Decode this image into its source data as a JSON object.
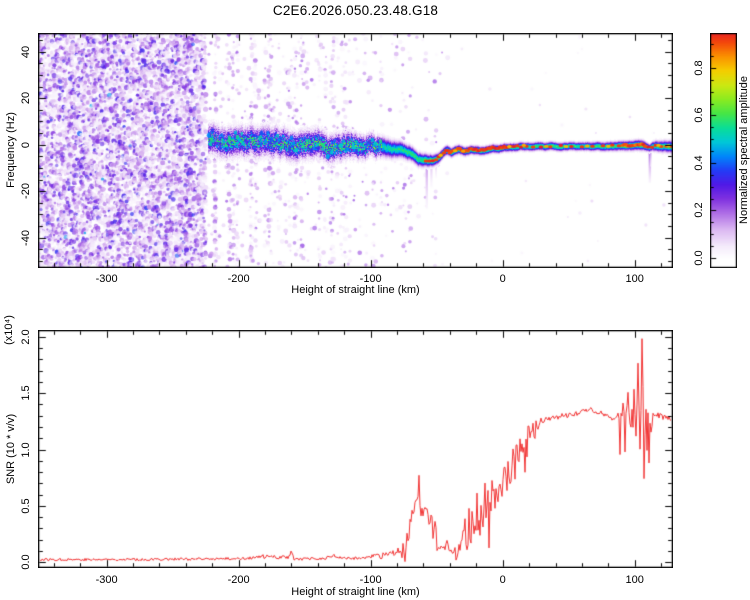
{
  "title": "C2E6.2026.050.23.48.G18",
  "colors": {
    "background": "#ffffff",
    "axis": "#000000",
    "snr_line": "#f23535",
    "colormap_stops": [
      [
        0.0,
        255,
        255,
        255
      ],
      [
        0.05,
        245,
        236,
        251
      ],
      [
        0.12,
        220,
        185,
        242
      ],
      [
        0.19,
        175,
        110,
        230
      ],
      [
        0.25,
        128,
        50,
        224
      ],
      [
        0.31,
        80,
        25,
        230
      ],
      [
        0.37,
        35,
        60,
        246
      ],
      [
        0.43,
        0,
        135,
        250
      ],
      [
        0.49,
        0,
        200,
        215
      ],
      [
        0.55,
        10,
        222,
        150
      ],
      [
        0.61,
        70,
        230,
        70
      ],
      [
        0.67,
        140,
        235,
        32
      ],
      [
        0.73,
        205,
        232,
        18
      ],
      [
        0.79,
        245,
        205,
        0
      ],
      [
        0.85,
        250,
        145,
        0
      ],
      [
        0.91,
        243,
        70,
        12
      ],
      [
        0.96,
        232,
        25,
        40
      ],
      [
        1.0,
        214,
        12,
        86
      ]
    ]
  },
  "chart_data": [
    {
      "type": "heatmap",
      "name": "spectrogram",
      "xlabel": "Height of straight line (km)",
      "ylabel": "Frequency (Hz)",
      "xlim": [
        -352,
        129
      ],
      "ylim": [
        -53,
        48
      ],
      "xticks": [
        [
          -300,
          "-300"
        ],
        [
          -200,
          "-200"
        ],
        [
          -100,
          "-100"
        ],
        [
          0,
          "0"
        ],
        [
          100,
          "100"
        ]
      ],
      "xminor_step": 20,
      "yticks": [
        [
          -40,
          "-40"
        ],
        [
          -20,
          "-20"
        ],
        [
          0,
          "0"
        ],
        [
          20,
          "20"
        ],
        [
          40,
          "40"
        ]
      ],
      "yminor_step": 5,
      "colorbar": {
        "label": "Normalized spectral amplitude",
        "ticks": [
          [
            0.0,
            "0.0"
          ],
          [
            0.2,
            "0.2"
          ],
          [
            0.4,
            "0.4"
          ],
          [
            0.6,
            "0.6"
          ],
          [
            0.8,
            "0.8"
          ]
        ],
        "minor_step": 0.05,
        "vmin": -0.042,
        "vmax": 0.947
      },
      "noise": {
        "dense_end": -226,
        "streak_end": -40,
        "sparse_density": 0.004
      },
      "band": {
        "start": -223,
        "mottle_end": -92,
        "center": [
          [
            -223,
            2.2
          ],
          [
            -215,
            0.8
          ],
          [
            -205,
            1.6
          ],
          [
            -196,
            0.6
          ],
          [
            -188,
            1.4
          ],
          [
            -180,
            0.6
          ],
          [
            -172,
            1.2
          ],
          [
            -164,
            0.2
          ],
          [
            -156,
            1.0
          ],
          [
            -148,
            0.4
          ],
          [
            -140,
            1.0
          ],
          [
            -132,
            -0.3
          ],
          [
            -124,
            0.6
          ],
          [
            -116,
            -0.4
          ],
          [
            -108,
            0.2
          ],
          [
            -100,
            -0.8
          ],
          [
            -92,
            -1.2
          ],
          [
            -84,
            -1.8
          ],
          [
            -76,
            -2.6
          ],
          [
            -70,
            -3.8
          ],
          [
            -64,
            -5.6
          ],
          [
            -58,
            -6.6
          ],
          [
            -53,
            -6.9
          ],
          [
            -49,
            -5.8
          ],
          [
            -45,
            -3.4
          ],
          [
            -42,
            -2.4
          ],
          [
            -39,
            -3.4
          ],
          [
            -36,
            -2.2
          ],
          [
            -33,
            -1.9
          ],
          [
            -29,
            -2.8
          ],
          [
            -25,
            -2.1
          ],
          [
            -20,
            -2.1
          ],
          [
            -15,
            -2.3
          ],
          [
            -11,
            -1.7
          ],
          [
            -7,
            -1.3
          ],
          [
            -3,
            -1.5
          ],
          [
            1,
            -0.9
          ],
          [
            6,
            -1.0
          ],
          [
            12,
            -0.7
          ],
          [
            20,
            -0.7
          ],
          [
            30,
            -0.6
          ],
          [
            45,
            -0.6
          ],
          [
            60,
            -0.5
          ],
          [
            75,
            -0.6
          ],
          [
            90,
            -0.4
          ],
          [
            98,
            -0.3
          ],
          [
            103,
            0.2
          ],
          [
            106,
            -0.1
          ],
          [
            109,
            -0.8
          ],
          [
            111,
            -1.4
          ],
          [
            113,
            -0.7
          ],
          [
            116,
            -0.5
          ],
          [
            122,
            -0.5
          ],
          [
            129,
            -0.6
          ]
        ],
        "sigma": [
          [
            -223,
            3.4
          ],
          [
            -160,
            3.3
          ],
          [
            -120,
            3.0
          ],
          [
            -95,
            2.4
          ],
          [
            -75,
            1.8
          ],
          [
            -58,
            1.5
          ],
          [
            -45,
            1.15
          ],
          [
            -25,
            1.05
          ],
          [
            0,
            1.0
          ],
          [
            60,
            1.0
          ],
          [
            95,
            1.15
          ],
          [
            105,
            1.25
          ],
          [
            111,
            0.9
          ],
          [
            115,
            1.25
          ],
          [
            129,
            1.45
          ]
        ],
        "amp": [
          [
            -223,
            0.44
          ],
          [
            -180,
            0.46
          ],
          [
            -140,
            0.48
          ],
          [
            -110,
            0.5
          ],
          [
            -92,
            0.52
          ],
          [
            -75,
            0.56
          ],
          [
            -60,
            0.6
          ],
          [
            -50,
            0.62
          ],
          [
            -40,
            0.6
          ],
          [
            -30,
            0.6
          ],
          [
            -20,
            0.62
          ],
          [
            -10,
            0.6
          ],
          [
            0,
            0.58
          ],
          [
            20,
            0.58
          ],
          [
            40,
            0.6
          ],
          [
            60,
            0.58
          ],
          [
            80,
            0.6
          ],
          [
            92,
            0.63
          ],
          [
            100,
            0.64
          ],
          [
            107,
            0.62
          ],
          [
            111,
            0.55
          ],
          [
            115,
            0.58
          ],
          [
            122,
            0.6
          ],
          [
            129,
            0.62
          ]
        ],
        "red_dots": [
          -58,
          -55.5,
          -53,
          -50.5,
          -48.5,
          -46.5,
          -44.5,
          -43,
          -41.5,
          -40,
          -38.5,
          -37,
          -35.5,
          -34,
          -32.5,
          -31,
          -29.5,
          -28,
          -26.5,
          -25,
          -23.5,
          -22,
          -20.5,
          -19,
          -17.8,
          -16.6,
          -15.4,
          -14.2,
          -13,
          -11.8,
          -10.6,
          -9.4,
          -8,
          -6.5,
          -5,
          -3.5,
          -2,
          -0.5,
          1,
          2.5,
          4,
          6,
          8.5,
          11,
          14,
          18,
          23,
          29,
          36,
          44,
          52,
          60,
          68,
          76,
          83,
          88,
          110,
          113,
          116,
          120,
          124,
          127.5
        ],
        "orange_dots": [
          -47,
          -36,
          -30,
          5,
          16,
          33,
          48,
          64,
          80,
          118,
          125.5
        ],
        "red_segments": [
          [
            91,
            108
          ]
        ]
      },
      "streaks": [
        {
          "h": -57.5,
          "f1": -8,
          "f2": -27,
          "a": 0.17,
          "w": 2.2
        },
        {
          "h": -54,
          "f1": -8,
          "f2": -18,
          "a": 0.12,
          "w": 2.0
        },
        {
          "h": -50.5,
          "f1": -8,
          "f2": -14,
          "a": 0.1,
          "w": 1.8
        },
        {
          "h": 111.5,
          "f1": -2,
          "f2": -16,
          "a": 0.22,
          "w": 2.4
        },
        {
          "h": 112.5,
          "f1": -2,
          "f2": -9,
          "a": 0.12,
          "w": 1.6
        }
      ],
      "seed": 1337
    },
    {
      "type": "line",
      "name": "snr",
      "xlabel": "Height of straight line (km)",
      "ylabel": "SNR (10 * v/v)",
      "ylabel_scale": "(x10⁴)",
      "xlim": [
        -352,
        129
      ],
      "ylim": [
        -0.053,
        2.062
      ],
      "xticks": [
        [
          -300,
          "-300"
        ],
        [
          -200,
          "-200"
        ],
        [
          -100,
          "-100"
        ],
        [
          0,
          "0"
        ],
        [
          100,
          "100"
        ]
      ],
      "xminor_step": 20,
      "yticks": [
        [
          0,
          "0.0"
        ],
        [
          0.5,
          "0.5"
        ],
        [
          1,
          "1.0"
        ],
        [
          1.5,
          "1.5"
        ],
        [
          2,
          "2.0"
        ]
      ],
      "yminor_step": 0.1,
      "anchors": [
        [
          -352,
          0.022
        ],
        [
          -330,
          0.025
        ],
        [
          -310,
          0.022
        ],
        [
          -290,
          0.026
        ],
        [
          -270,
          0.024
        ],
        [
          -250,
          0.028
        ],
        [
          -230,
          0.026
        ],
        [
          -215,
          0.03
        ],
        [
          -200,
          0.032
        ],
        [
          -188,
          0.04
        ],
        [
          -180,
          0.05
        ],
        [
          -174,
          0.042
        ],
        [
          -168,
          0.052
        ],
        [
          -162,
          0.04
        ],
        [
          -160,
          0.1
        ],
        [
          -158,
          0.035
        ],
        [
          -150,
          0.03
        ],
        [
          -142,
          0.028
        ],
        [
          -135,
          0.032
        ],
        [
          -128,
          0.06
        ],
        [
          -124,
          0.04
        ],
        [
          -118,
          0.035
        ],
        [
          -110,
          0.034
        ],
        [
          -104,
          0.04
        ],
        [
          -98,
          0.045
        ],
        [
          -93,
          0.052
        ],
        [
          -88,
          0.06
        ],
        [
          -83,
          0.075
        ],
        [
          -79,
          0.1
        ],
        [
          -76,
          0.13
        ],
        [
          -73,
          0.2
        ],
        [
          -70,
          0.32
        ],
        [
          -67,
          0.46
        ],
        [
          -65,
          0.58
        ],
        [
          -63.5,
          0.72
        ],
        [
          -62.5,
          0.45
        ],
        [
          -61.5,
          0.66
        ],
        [
          -60.5,
          0.38
        ],
        [
          -59.5,
          0.58
        ],
        [
          -58.5,
          0.42
        ],
        [
          -57,
          0.52
        ],
        [
          -55.5,
          0.3
        ],
        [
          -54,
          0.38
        ],
        [
          -52.5,
          0.24
        ],
        [
          -51,
          0.3
        ],
        [
          -49.5,
          0.17
        ],
        [
          -48,
          0.2
        ],
        [
          -46.5,
          0.13
        ],
        [
          -45,
          0.18
        ],
        [
          -43.5,
          0.11
        ],
        [
          -42,
          0.16
        ],
        [
          -40.5,
          0.09
        ],
        [
          -39,
          0.13
        ],
        [
          -37.5,
          0.07
        ],
        [
          -36,
          0.11
        ],
        [
          -34.5,
          0.06
        ],
        [
          -33,
          0.13
        ],
        [
          -31.5,
          0.09
        ],
        [
          -30,
          0.22
        ],
        [
          -28.5,
          0.3
        ],
        [
          -27,
          0.24
        ],
        [
          -25.5,
          0.36
        ],
        [
          -24,
          0.3
        ],
        [
          -22.5,
          0.44
        ],
        [
          -21,
          0.34
        ],
        [
          -19.5,
          0.5
        ],
        [
          -18,
          0.38
        ],
        [
          -16.5,
          0.56
        ],
        [
          -15,
          0.42
        ],
        [
          -13.5,
          0.6
        ],
        [
          -12,
          0.48
        ],
        [
          -10.5,
          0.64
        ],
        [
          -9,
          0.5
        ],
        [
          -7.5,
          0.68
        ],
        [
          -6,
          0.52
        ],
        [
          -4.5,
          0.74
        ],
        [
          -3,
          0.58
        ],
        [
          -1.5,
          0.78
        ],
        [
          0,
          0.62
        ],
        [
          1.5,
          0.84
        ],
        [
          3,
          0.68
        ],
        [
          4.5,
          0.9
        ],
        [
          6,
          0.74
        ],
        [
          7.5,
          0.96
        ],
        [
          9,
          0.8
        ],
        [
          10.5,
          1.0
        ],
        [
          12,
          0.86
        ],
        [
          13.5,
          1.06
        ],
        [
          15,
          0.92
        ],
        [
          16.5,
          1.1
        ],
        [
          18,
          1.0
        ],
        [
          19.5,
          1.15
        ],
        [
          21,
          1.06
        ],
        [
          22.5,
          1.2
        ],
        [
          24,
          1.12
        ],
        [
          25.5,
          1.24
        ],
        [
          27,
          1.18
        ],
        [
          28.5,
          1.27
        ],
        [
          30,
          1.24
        ],
        [
          32,
          1.28
        ],
        [
          35,
          1.27
        ],
        [
          38,
          1.3
        ],
        [
          42,
          1.29
        ],
        [
          46,
          1.31
        ],
        [
          50,
          1.3
        ],
        [
          54,
          1.32
        ],
        [
          58,
          1.33
        ],
        [
          62,
          1.35
        ],
        [
          66,
          1.36
        ],
        [
          70,
          1.34
        ],
        [
          74,
          1.33
        ],
        [
          78,
          1.31
        ],
        [
          82,
          1.29
        ],
        [
          85,
          1.27
        ],
        [
          87,
          1.33
        ],
        [
          89,
          1.24
        ],
        [
          91,
          1.4
        ],
        [
          93,
          1.2
        ],
        [
          95,
          1.5
        ],
        [
          97,
          1.18
        ],
        [
          99,
          1.6
        ],
        [
          101,
          1.12
        ],
        [
          102.5,
          1.75
        ],
        [
          104,
          0.95
        ],
        [
          105,
          1.55
        ],
        [
          105.8,
          2.06
        ],
        [
          106.6,
          1.3
        ],
        [
          107.4,
          0.42
        ],
        [
          108.2,
          1.9
        ],
        [
          109,
          0.55
        ],
        [
          109.8,
          1.55
        ],
        [
          110.6,
          0.85
        ],
        [
          111.5,
          1.35
        ],
        [
          112.5,
          1.15
        ],
        [
          113.5,
          1.3
        ],
        [
          115,
          1.28
        ],
        [
          117,
          1.31
        ],
        [
          120,
          1.29
        ],
        [
          123,
          1.3
        ],
        [
          126,
          1.27
        ],
        [
          129,
          1.22
        ]
      ],
      "noise_regions": [
        [
          -352,
          -185,
          0.012
        ],
        [
          -185,
          -152,
          0.02
        ],
        [
          -152,
          -100,
          0.012
        ],
        [
          -100,
          -77,
          0.03
        ],
        [
          -77,
          -49,
          0.09
        ],
        [
          -49,
          -32,
          0.045
        ],
        [
          -32,
          -4,
          0.14
        ],
        [
          -4,
          26,
          0.11
        ],
        [
          26,
          86,
          0.022
        ],
        [
          86,
          103,
          0.08
        ],
        [
          103,
          112,
          0.12
        ],
        [
          112,
          129,
          0.03
        ]
      ],
      "seed": 77
    }
  ]
}
